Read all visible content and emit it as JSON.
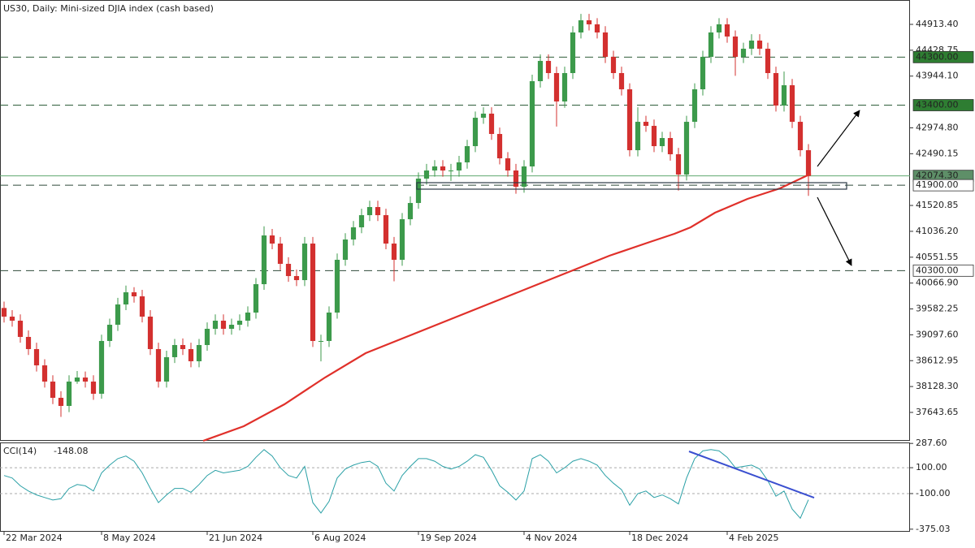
{
  "header": "US30, Daily:  Mini-sized DJIA index (cash based)",
  "chart_data": [
    {
      "type": "candlestick",
      "xlim": [
        -0.5,
        111.5
      ],
      "ylim": [
        37111,
        45370
      ],
      "up_color": "#3c9a4b",
      "down_color": "#d3302f",
      "yticks": [
        {
          "value": 44913.4,
          "label": "44913.40"
        },
        {
          "value": 44428.75,
          "label": "44428.75"
        },
        {
          "value": 43944.1,
          "label": "43944.10"
        },
        {
          "value": 42974.8,
          "label": "42974.80"
        },
        {
          "value": 42490.15,
          "label": "42490.15"
        },
        {
          "value": 41520.85,
          "label": "41520.85"
        },
        {
          "value": 41036.2,
          "label": "41036.20"
        },
        {
          "value": 40551.55,
          "label": "40551.55"
        },
        {
          "value": 40066.9,
          "label": "40066.90"
        },
        {
          "value": 39582.25,
          "label": "39582.25"
        },
        {
          "value": 39097.6,
          "label": "39097.60"
        },
        {
          "value": 38612.95,
          "label": "38612.95"
        },
        {
          "value": 38128.3,
          "label": "38128.30"
        },
        {
          "value": 37643.65,
          "label": "37643.65"
        }
      ],
      "xticks": [
        {
          "value": 0,
          "label": "22 Mar 2024"
        },
        {
          "value": 12,
          "label": "8 May 2024"
        },
        {
          "value": 25,
          "label": "21 Jun 2024"
        },
        {
          "value": 38,
          "label": "6 Aug 2024"
        },
        {
          "value": 51,
          "label": "19 Sep 2024"
        },
        {
          "value": 64,
          "label": "4 Nov 2024"
        },
        {
          "value": 77,
          "label": "18 Dec 2024"
        },
        {
          "value": 89,
          "label": "4 Feb 2025"
        }
      ],
      "open": [
        39600,
        39438,
        39362,
        39058,
        38830,
        38525,
        38221,
        37917,
        37765,
        38221,
        38297,
        38221,
        37993,
        38982,
        39286,
        39666,
        39894,
        39818,
        39438,
        38830,
        38221,
        38678,
        38906,
        38830,
        38602,
        38906,
        39210,
        39362,
        39210,
        39286,
        39362,
        39514,
        40046,
        40959,
        40807,
        40427,
        40198,
        40122,
        40807,
        38982,
        38982,
        39514,
        40503,
        40883,
        41111,
        41339,
        41491,
        41339,
        40807,
        40503,
        41263,
        41567,
        42024,
        42176,
        42252,
        42176,
        42176,
        42328,
        42632,
        43164,
        43241,
        42860,
        42404,
        42176,
        41872,
        42252,
        43849,
        44229,
        44001,
        43469,
        44001,
        44762,
        44990,
        44914,
        44762,
        44305,
        44001,
        43697,
        42556,
        43088,
        43012,
        42632,
        42784,
        42480,
        42100,
        43088,
        43697,
        44305,
        44762,
        44914,
        44686,
        44305,
        44457,
        44610,
        44457,
        44001,
        43393,
        43773,
        43088,
        42556
      ],
      "high": [
        39720,
        39560,
        39480,
        39180,
        38950,
        38640,
        38340,
        38040,
        38340,
        38420,
        38410,
        38340,
        39100,
        39400,
        39790,
        40020,
        39990,
        39940,
        39560,
        38950,
        38800,
        39020,
        39030,
        38950,
        39020,
        39330,
        39480,
        39480,
        39400,
        39480,
        39630,
        40160,
        41130,
        41080,
        40930,
        40550,
        40320,
        40930,
        40930,
        39100,
        39630,
        40620,
        41000,
        41230,
        41460,
        41610,
        41610,
        41460,
        40930,
        41380,
        41690,
        42140,
        42300,
        42370,
        42370,
        42300,
        42450,
        42750,
        43280,
        43360,
        43360,
        42980,
        42520,
        42300,
        42370,
        43970,
        44350,
        44350,
        44120,
        44120,
        44880,
        45110,
        45110,
        45030,
        44880,
        44420,
        44120,
        43810,
        43360,
        43200,
        43130,
        42900,
        42900,
        42600,
        43200,
        43810,
        44420,
        44880,
        45030,
        45030,
        44800,
        44570,
        44730,
        44730,
        44570,
        44120,
        44030,
        43890,
        43200,
        42670
      ],
      "low": [
        39328,
        39250,
        38950,
        38720,
        38410,
        38110,
        37800,
        37560,
        37650,
        38180,
        38110,
        37880,
        37900,
        38870,
        39170,
        39560,
        39700,
        39330,
        38720,
        38110,
        38110,
        38570,
        38720,
        38490,
        38490,
        38800,
        39100,
        39100,
        39100,
        39180,
        39250,
        39400,
        39940,
        40700,
        40310,
        40090,
        40010,
        40010,
        38870,
        38600,
        38870,
        39400,
        40390,
        40770,
        41000,
        41230,
        41230,
        40700,
        40100,
        40390,
        41150,
        41460,
        41910,
        42060,
        42060,
        41980,
        42060,
        42210,
        42520,
        43050,
        42750,
        42290,
        42060,
        41740,
        41760,
        42140,
        43730,
        43890,
        43000,
        43350,
        43890,
        44650,
        44800,
        44650,
        44190,
        43890,
        43580,
        42440,
        42440,
        42900,
        42520,
        42520,
        42360,
        41800,
        41990,
        42970,
        43580,
        44190,
        44650,
        44570,
        43950,
        44190,
        44340,
        44340,
        43890,
        43280,
        43280,
        42970,
        42440,
        41700
      ],
      "close": [
        39438,
        39362,
        39058,
        38830,
        38525,
        38221,
        37917,
        37765,
        38221,
        38297,
        38221,
        37993,
        38982,
        39286,
        39666,
        39894,
        39818,
        39438,
        38830,
        38221,
        38678,
        38906,
        38830,
        38602,
        38906,
        39210,
        39362,
        39210,
        39286,
        39362,
        39514,
        40046,
        40959,
        40807,
        40427,
        40198,
        40122,
        40807,
        38982,
        38982,
        39514,
        40503,
        40883,
        41111,
        41339,
        41491,
        41339,
        40807,
        40503,
        41263,
        41567,
        42024,
        42176,
        42252,
        42176,
        42176,
        42328,
        42632,
        43164,
        43241,
        42860,
        42404,
        42176,
        41872,
        42252,
        43849,
        44229,
        44001,
        43469,
        44001,
        44762,
        44990,
        44914,
        44762,
        44305,
        44001,
        43697,
        42556,
        43088,
        43012,
        42632,
        42784,
        42480,
        42100,
        43088,
        43697,
        44305,
        44762,
        44914,
        44686,
        44305,
        44457,
        44610,
        44457,
        44001,
        43393,
        43773,
        43088,
        42556,
        42074.3
      ],
      "ma": {
        "color": "#e0302a",
        "x": [
          24.5,
          29.5,
          34.5,
          39.5,
          44.5,
          49.5,
          54.5,
          59.5,
          64.5,
          69.5,
          74.5,
          79.5,
          82.5,
          84.5,
          87.5,
          91.5,
          95.5,
          99.3
        ],
        "values": [
          37111,
          37385,
          37795,
          38297,
          38754,
          39058,
          39362,
          39666,
          39970,
          40275,
          40579,
          40838,
          40990,
          41111,
          41385,
          41643,
          41841,
          42115
        ]
      },
      "levels": [
        {
          "value": 44300,
          "label": "44300.00",
          "style": "dashed",
          "color": "#2f5e3a",
          "label_bg": "#2e7d32",
          "label_color": "#ffffff"
        },
        {
          "value": 43400,
          "label": "43400.00",
          "style": "dashed",
          "color": "#2f5e3a",
          "label_bg": "#2e7d32",
          "label_color": "#ffffff"
        },
        {
          "value": 42074.3,
          "label": "42074.30",
          "style": "solid",
          "color": "#5fa86f",
          "label_bg": "#5e8f68",
          "label_color": "#ffffff"
        },
        {
          "value": 41900,
          "label": "41900.00",
          "style": "dashed",
          "color": "#2f4a3a",
          "label_bg": "#ffffff",
          "label_color": "#111111"
        },
        {
          "value": 40300,
          "label": "40300.00",
          "style": "dashed",
          "color": "#2f4a3a",
          "label_bg": "#ffffff",
          "label_color": "#111111"
        }
      ]
    },
    {
      "type": "line",
      "name": "CCI(14)",
      "color": "#2aa0a6",
      "xlim": [
        -0.5,
        111.5
      ],
      "ylim": [
        -395,
        295
      ],
      "yticks": [
        {
          "value": 287.6,
          "label": "287.60"
        },
        {
          "value": 100,
          "label": "100.00"
        },
        {
          "value": -100,
          "label": "-100.00"
        },
        {
          "value": -375.03,
          "label": "-375.03"
        }
      ],
      "levels": [
        100,
        -100
      ],
      "values": [
        40,
        20,
        -40,
        -80,
        -110,
        -130,
        -150,
        -140,
        -60,
        -30,
        -40,
        -80,
        60,
        120,
        170,
        190,
        150,
        60,
        -60,
        -170,
        -110,
        -60,
        -60,
        -90,
        -30,
        40,
        80,
        60,
        70,
        80,
        110,
        180,
        240,
        190,
        100,
        40,
        20,
        110,
        -170,
        -250,
        -160,
        20,
        90,
        120,
        140,
        150,
        110,
        -20,
        -80,
        40,
        110,
        170,
        170,
        150,
        110,
        90,
        110,
        150,
        200,
        180,
        80,
        -40,
        -90,
        -150,
        -80,
        170,
        200,
        150,
        60,
        100,
        150,
        170,
        150,
        120,
        40,
        -20,
        -70,
        -190,
        -100,
        -80,
        -130,
        -110,
        -140,
        -180,
        20,
        170,
        230,
        240,
        230,
        180,
        100,
        110,
        120,
        90,
        0,
        -120,
        -80,
        -220,
        -290,
        -148.08
      ],
      "trendline": {
        "color": "#3a4fd0",
        "x": [
          84.3,
          99.7
        ],
        "values": [
          226,
          -132
        ]
      }
    }
  ]
}
